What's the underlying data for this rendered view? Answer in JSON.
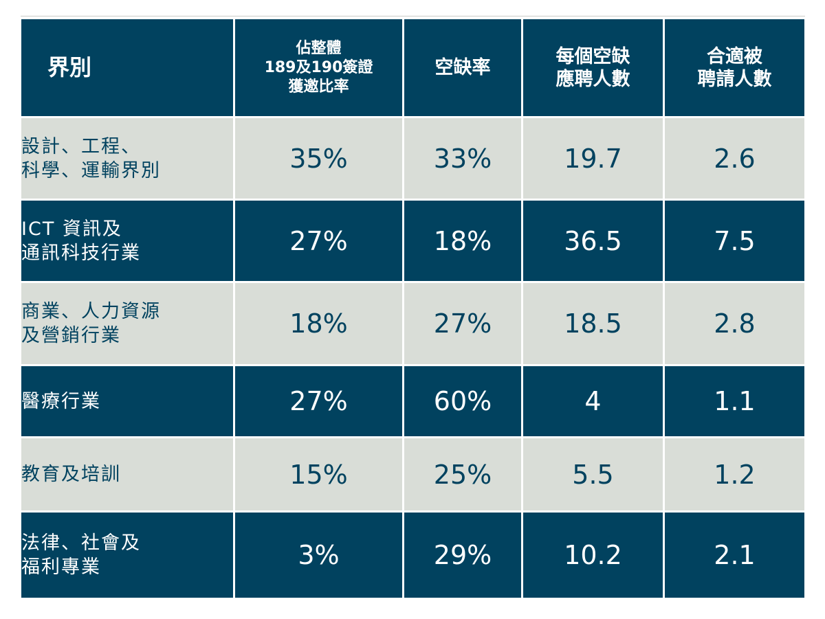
{
  "colors": {
    "dark": "#01425f",
    "light": "#d9ddd7",
    "text_on_dark": "#ffffff",
    "text_on_light": "#01425f"
  },
  "chart_data": {
    "type": "table",
    "columns": [
      "界別",
      "佔整體\n189及190簽證\n獲邀比率",
      "空缺率",
      "每個空缺\n應聘人數",
      "合適被\n聘請人數"
    ],
    "rows": [
      {
        "sector": "設計、工程、\n科學、運輸界別",
        "invite_share": "35%",
        "vacancy_rate": "33%",
        "applicants_per_vacancy": "19.7",
        "suitable_hires": "2.6"
      },
      {
        "sector": "ICT 資訊及\n通訊科技行業",
        "invite_share": "27%",
        "vacancy_rate": "18%",
        "applicants_per_vacancy": "36.5",
        "suitable_hires": "7.5"
      },
      {
        "sector": "商業、人力資源\n及營銷行業",
        "invite_share": "18%",
        "vacancy_rate": "27%",
        "applicants_per_vacancy": "18.5",
        "suitable_hires": "2.8"
      },
      {
        "sector": "醫療行業",
        "invite_share": "27%",
        "vacancy_rate": "60%",
        "applicants_per_vacancy": "4",
        "suitable_hires": "1.1"
      },
      {
        "sector": "教育及培訓",
        "invite_share": "15%",
        "vacancy_rate": "25%",
        "applicants_per_vacancy": "5.5",
        "suitable_hires": "1.2"
      },
      {
        "sector": "法律、社會及\n福利專業",
        "invite_share": "3%",
        "vacancy_rate": "29%",
        "applicants_per_vacancy": "10.2",
        "suitable_hires": "2.1"
      }
    ]
  }
}
